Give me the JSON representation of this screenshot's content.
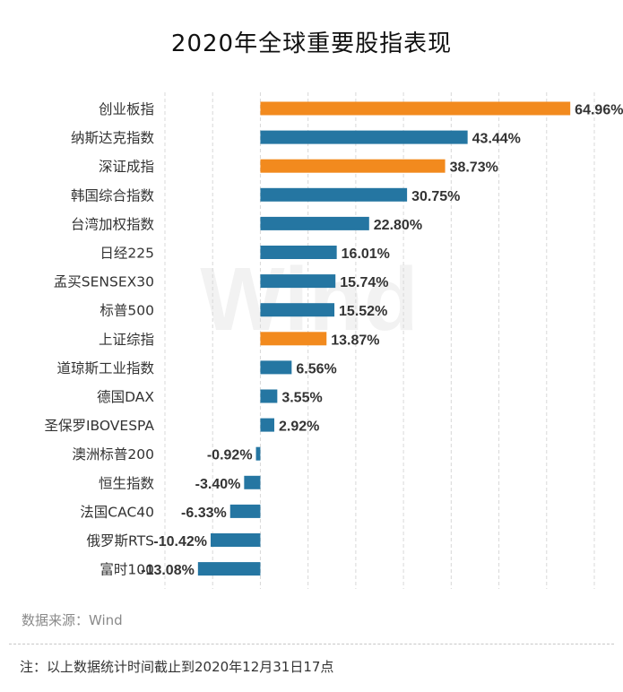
{
  "chart_title": "2020年全球重要股指表现",
  "source_text": "数据来源：Wind",
  "watermark_text": "Wind",
  "note_text": "注：以上数据统计时间截止到2020年12月31日17点",
  "colors": {
    "highlight": "#f28a1e",
    "normal": "#2576a2",
    "grid": "#d8d8d8",
    "label": "#333333",
    "value_label": "#333333"
  },
  "chart_data": {
    "type": "bar",
    "orientation": "horizontal",
    "title": "2020年全球重要股指表现",
    "unit": "%",
    "categories": [
      "创业板指",
      "纳斯达克指数",
      "深证成指",
      "韩国综合指数",
      "台湾加权指数",
      "日经225",
      "孟买SENSEX30",
      "标普500",
      "上证综指",
      "道琼斯工业指数",
      "德国DAX",
      "圣保罗IBOVESPA",
      "澳洲标普200",
      "恒生指数",
      "法国CAC40",
      "俄罗斯RTS",
      "富时100"
    ],
    "values": [
      64.96,
      43.44,
      38.73,
      30.75,
      22.8,
      16.01,
      15.74,
      15.52,
      13.87,
      6.56,
      3.55,
      2.92,
      -0.92,
      -3.4,
      -6.33,
      -10.42,
      -13.08
    ],
    "value_labels": [
      "64.96%",
      "43.44%",
      "38.73%",
      "30.75%",
      "22.80%",
      "16.01%",
      "15.74%",
      "15.52%",
      "13.87%",
      "6.56%",
      "3.55%",
      "2.92%",
      "-0.92%",
      "-3.40%",
      "-6.33%",
      "-10.42%",
      "-13.08%"
    ],
    "highlight_categories": [
      "创业板指",
      "深证成指",
      "上证综指"
    ],
    "xlim": [
      -20,
      70
    ],
    "grid_step": 10,
    "grid": true,
    "legend": false
  }
}
